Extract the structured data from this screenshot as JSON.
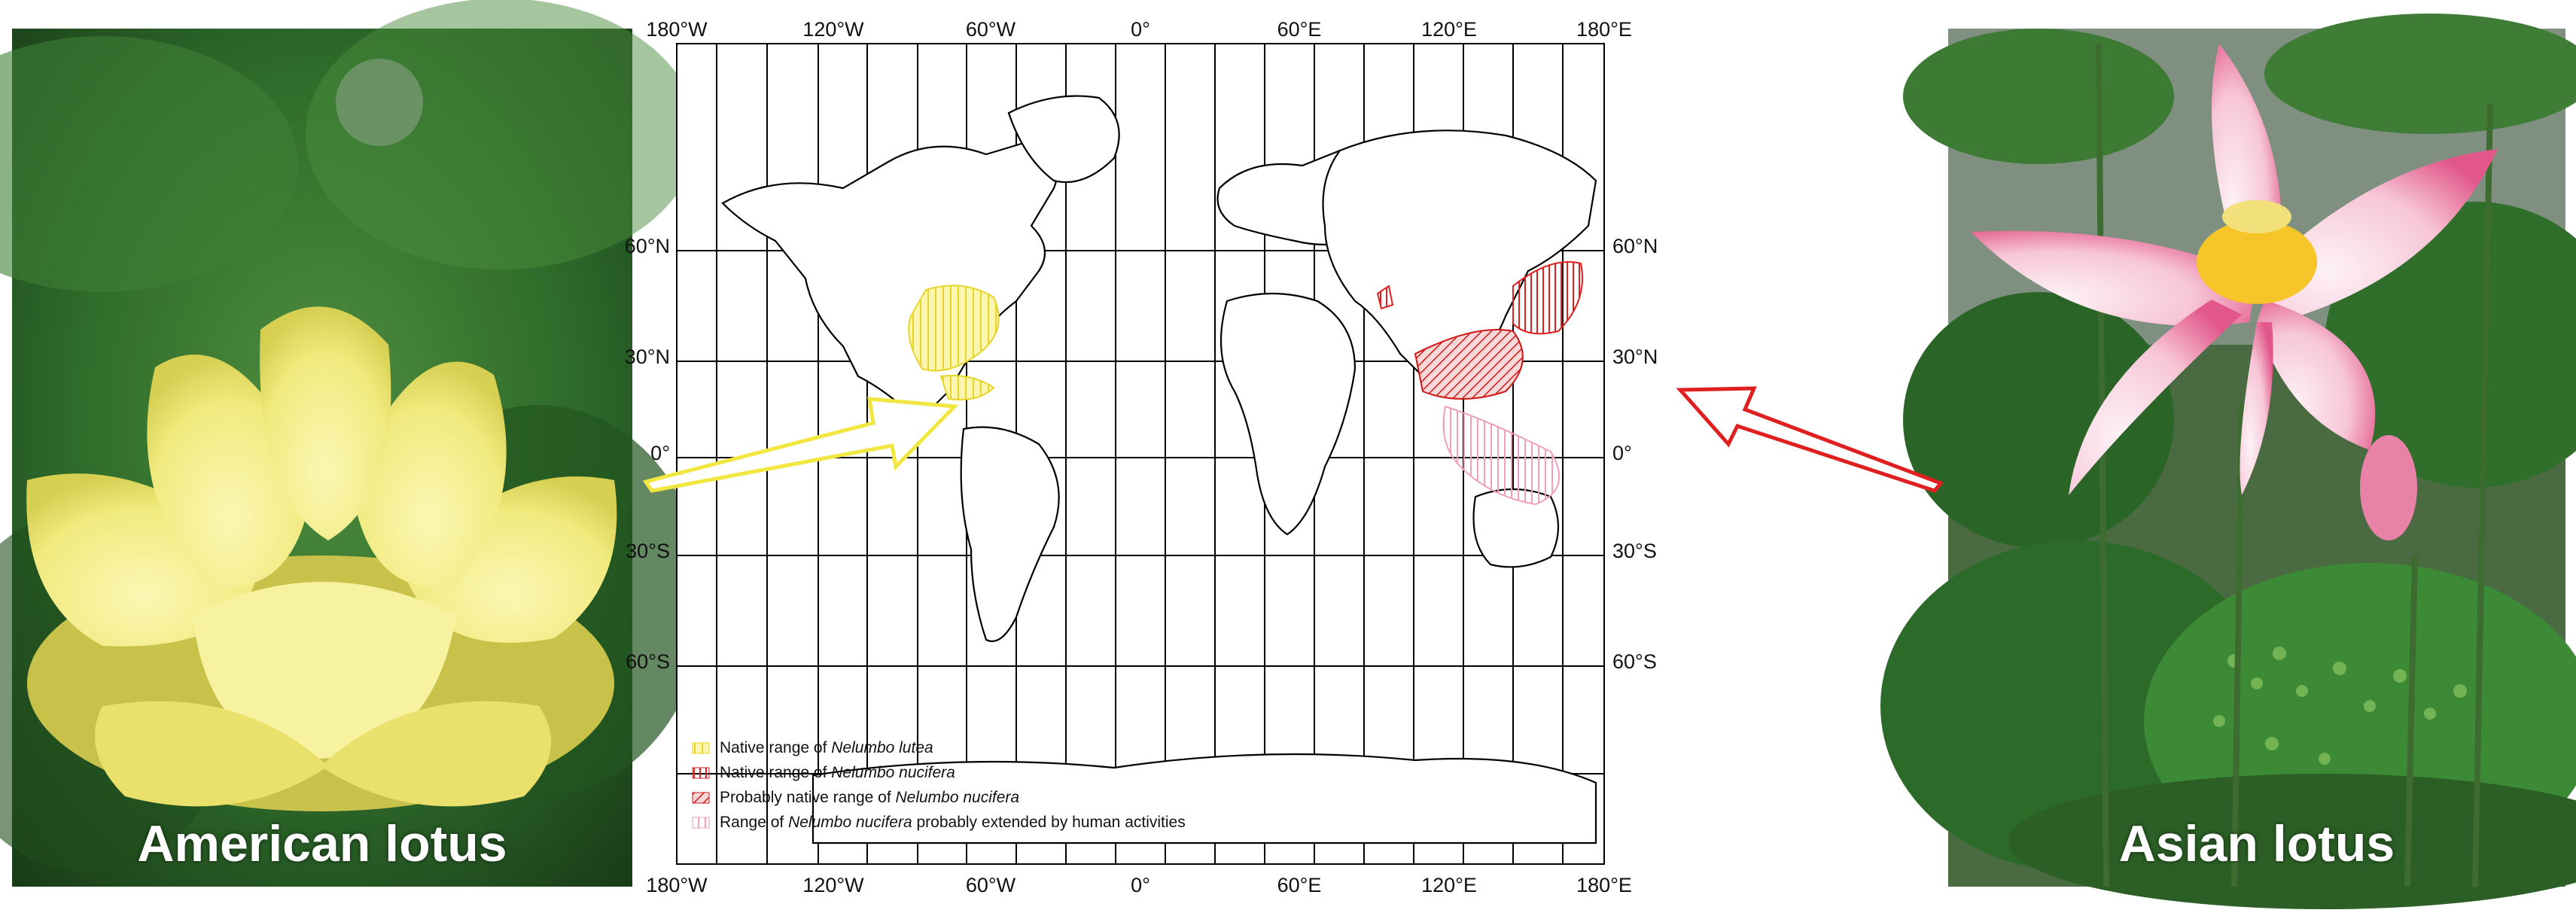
{
  "photos": {
    "left": {
      "caption": "American lotus"
    },
    "right": {
      "caption": "Asian lotus"
    }
  },
  "map": {
    "lon_ticks": [
      "180°W",
      "120°W",
      "60°W",
      "0°",
      "60°E",
      "120°E",
      "180°E"
    ],
    "lat_ticks": [
      "60°N",
      "30°N",
      "0°",
      "30°S",
      "60°S"
    ],
    "legend": [
      {
        "prefix": "Native range of ",
        "species": "Nelumbo lutea",
        "suffix": "",
        "color": "#f2e640"
      },
      {
        "prefix": "Native range of ",
        "species": "Nelumbo nucifera",
        "suffix": "",
        "color": "#e02020"
      },
      {
        "prefix": "Probably native range of ",
        "species": "Nelumbo nucifera",
        "suffix": "",
        "color": "#d01818"
      },
      {
        "prefix": "Range of ",
        "species": "Nelumbo nucifera",
        "suffix": " probably extended by human activities",
        "color": "#f0a0b8"
      }
    ]
  },
  "colors": {
    "lutea": "#f2e640",
    "nucifera": "#e02020",
    "extended": "#f0a0b8",
    "arrow_left": "#f2e640",
    "arrow_right": "#e02020"
  }
}
